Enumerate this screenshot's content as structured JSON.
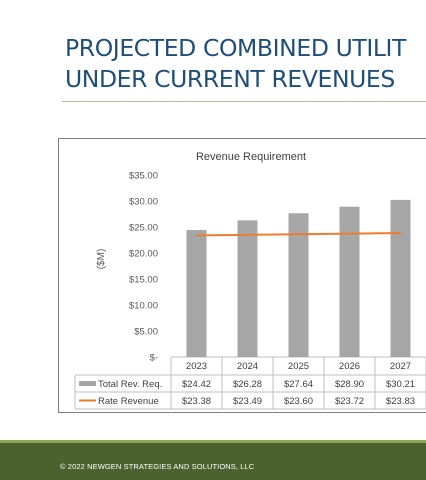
{
  "slide": {
    "title_line1": "PROJECTED COMBINED UTILIT",
    "title_line2": "UNDER CURRENT REVENUES",
    "footer": "© 2022 NEWGEN STRATEGIES AND SOLUTIONS, LLC"
  },
  "colors": {
    "title": "#1f4e79",
    "bar": "#a6a6a6",
    "line": "#ed7d31",
    "footer": "#4b622e",
    "footer_accent": "#8aa84f"
  },
  "chart_data": {
    "type": "bar",
    "title": "Revenue Requirement",
    "ylabel": "($M)",
    "xlabel": "",
    "categories": [
      "2023",
      "2024",
      "2025",
      "2026",
      "2027"
    ],
    "ylim": [
      0,
      35
    ],
    "ytick_labels": [
      "$-",
      "$5.00",
      "$10.00",
      "$15.00",
      "$20.00",
      "$25.00",
      "$30.00",
      "$35.00"
    ],
    "grid": false,
    "legend": "data-table",
    "series": [
      {
        "name": "Total Rev. Req.",
        "type": "bar",
        "values": [
          24.42,
          26.28,
          27.64,
          28.9,
          30.21
        ],
        "labels": [
          "$24.42",
          "$26.28",
          "$27.64",
          "$28.90",
          "$30.21"
        ]
      },
      {
        "name": "Rate Revenue",
        "type": "line",
        "values": [
          23.38,
          23.49,
          23.6,
          23.72,
          23.83
        ],
        "labels": [
          "$23.38",
          "$23.49",
          "$23.60",
          "$23.72",
          "$23.83"
        ]
      }
    ]
  }
}
